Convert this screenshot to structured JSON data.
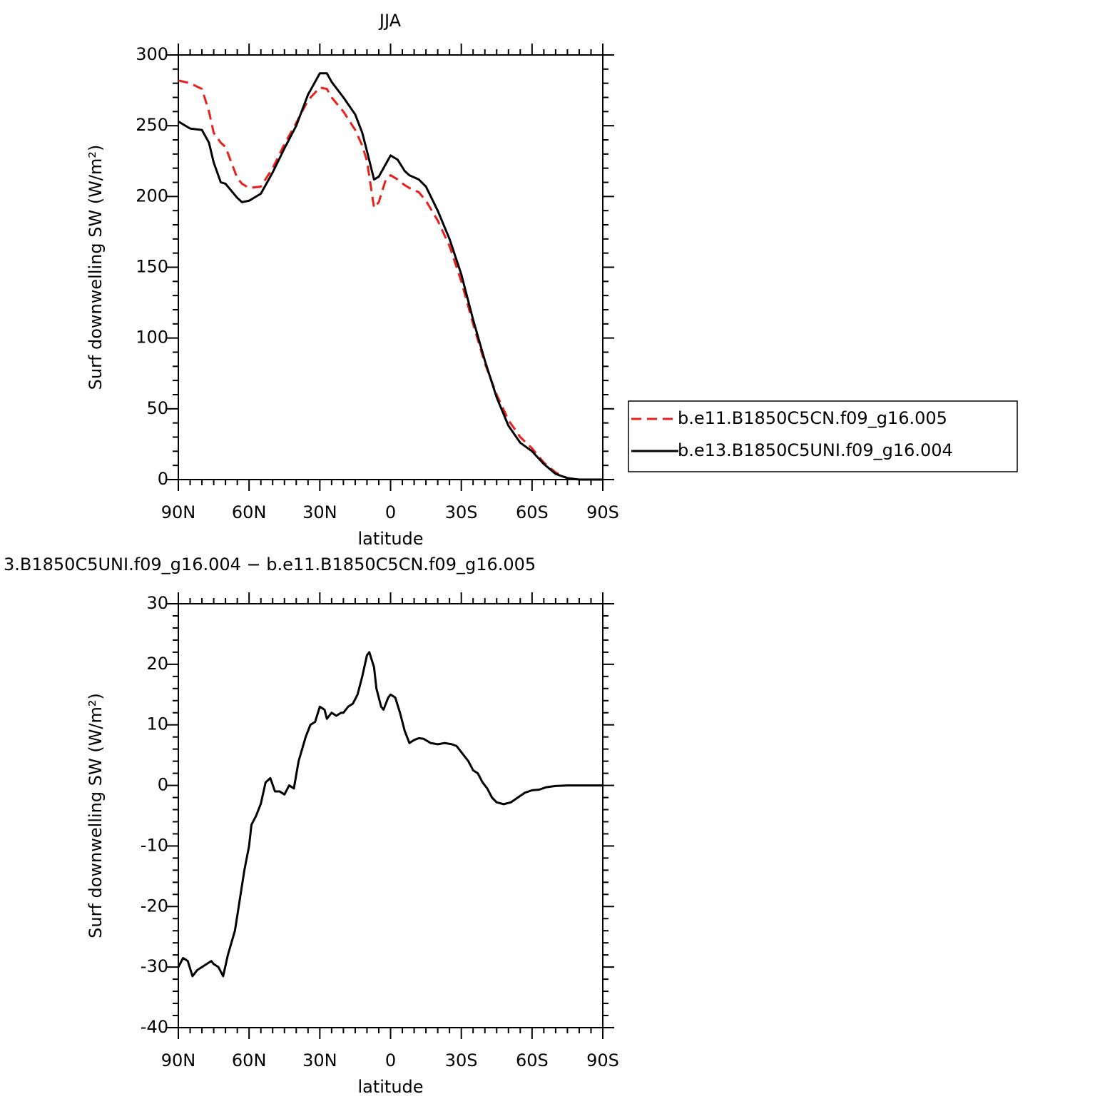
{
  "chart_data": [
    {
      "type": "line",
      "title": "JJA",
      "xlabel": "latitude",
      "ylabel": "Surf downwelling SW (W/m²)",
      "x": [
        90,
        85,
        80,
        77,
        75,
        72,
        70,
        65,
        63,
        60,
        55,
        50,
        45,
        40,
        35,
        30,
        27,
        25,
        20,
        15,
        12,
        10,
        7,
        5,
        2,
        0,
        -3,
        -6,
        -8,
        -12,
        -15,
        -20,
        -25,
        -30,
        -35,
        -40,
        -45,
        -50,
        -55,
        -60,
        -65,
        -70,
        -75,
        -80,
        -85,
        -90
      ],
      "series": [
        {
          "name": "b.e11.B1850C5CN.f09_g16.005",
          "color": "#e8201e",
          "line_style": "dashed",
          "values": [
            282,
            280,
            276,
            260,
            245,
            238,
            235,
            213,
            209,
            206,
            207,
            220,
            237,
            252,
            268,
            277,
            276,
            270,
            260,
            247,
            236,
            225,
            192,
            196,
            212,
            215,
            212,
            208,
            206,
            203,
            197,
            183,
            165,
            140,
            110,
            82,
            60,
            42,
            30,
            22,
            12,
            5,
            1,
            0,
            0,
            0
          ]
        },
        {
          "name": "b.e13.B1850C5UNI.f09_g16.004",
          "color": "#000000",
          "line_style": "solid",
          "values": [
            253,
            248,
            247,
            238,
            224,
            210,
            209,
            199,
            196,
            197,
            202,
            217,
            234,
            250,
            272,
            287,
            287,
            281,
            270,
            258,
            245,
            232,
            212,
            214,
            223,
            229,
            226,
            218,
            215,
            212,
            207,
            190,
            170,
            145,
            113,
            84,
            58,
            38,
            26,
            20,
            11,
            4,
            1,
            0,
            0,
            0
          ]
        }
      ],
      "xlim": [
        90,
        -90
      ],
      "xticks": [
        {
          "value": 90,
          "label": "90N"
        },
        {
          "value": 60,
          "label": "60N"
        },
        {
          "value": 30,
          "label": "30N"
        },
        0,
        {
          "value": -30,
          "label": "30S"
        },
        {
          "value": -60,
          "label": "60S"
        },
        {
          "value": -90,
          "label": "90S"
        }
      ],
      "ylim": [
        0,
        300
      ],
      "yticks": [
        0,
        50,
        100,
        150,
        200,
        250,
        300
      ],
      "legend": "right"
    },
    {
      "type": "line",
      "title": "3.B1850C5UNI.f09_g16.004 − b.e11.B1850C5CN.f09_g16.005",
      "xlabel": "latitude",
      "ylabel": "Surf downwelling SW (W/m²)",
      "x": [
        90,
        88,
        86,
        84,
        82,
        80,
        78,
        76,
        75,
        73,
        71,
        69,
        66,
        64,
        62,
        60,
        59,
        57,
        55,
        53,
        51,
        49,
        47,
        45,
        43,
        41,
        39,
        36,
        34,
        32,
        30,
        28,
        27,
        25,
        23,
        21,
        20,
        18,
        16,
        14,
        12,
        10,
        9,
        7,
        6,
        4,
        3,
        1,
        0,
        -2,
        -4,
        -6,
        -7,
        -8,
        -10,
        -12,
        -14,
        -17,
        -20,
        -23,
        -26,
        -28,
        -30,
        -33,
        -35,
        -37,
        -39,
        -41,
        -43,
        -45,
        -48,
        -51,
        -54,
        -57,
        -60,
        -63,
        -66,
        -70,
        -75,
        -80,
        -90
      ],
      "series": [
        {
          "color": "#000000",
          "line_style": "solid",
          "values": [
            -30,
            -28.5,
            -29,
            -31.5,
            -30.5,
            -30,
            -29.5,
            -29,
            -29.5,
            -30,
            -31.5,
            -28,
            -24,
            -19,
            -14,
            -10,
            -6.5,
            -5,
            -3,
            0.5,
            1.2,
            -1,
            -1,
            -1.5,
            0,
            -0.5,
            4,
            8,
            10,
            10.5,
            13,
            12.5,
            11,
            12,
            11.5,
            12,
            12,
            13,
            13.5,
            15,
            18,
            21.5,
            22,
            19.5,
            16,
            13,
            12.5,
            14.5,
            15,
            14.5,
            12,
            9,
            8,
            7,
            7.5,
            7.8,
            7.7,
            7,
            6.8,
            7,
            6.8,
            6.5,
            5.5,
            4,
            2.5,
            2,
            0.5,
            -0.5,
            -2,
            -2.8,
            -3.1,
            -2.8,
            -2,
            -1.2,
            -0.8,
            -0.7,
            -0.3,
            -0.1,
            0,
            0,
            0
          ]
        }
      ],
      "xlim": [
        90,
        -90
      ],
      "xticks": [
        {
          "value": 90,
          "label": "90N"
        },
        {
          "value": 60,
          "label": "60N"
        },
        {
          "value": 30,
          "label": "30N"
        },
        0,
        {
          "value": -30,
          "label": "30S"
        },
        {
          "value": -60,
          "label": "60S"
        },
        {
          "value": -90,
          "label": "90S"
        }
      ],
      "ylim": [
        -40,
        30
      ],
      "yticks": [
        -40,
        -30,
        -20,
        -10,
        0,
        10,
        20,
        30
      ]
    }
  ]
}
